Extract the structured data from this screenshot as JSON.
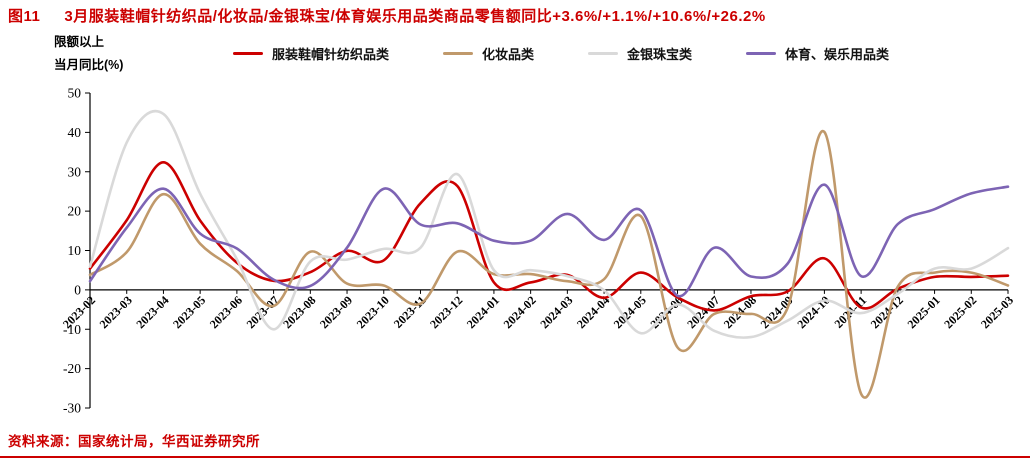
{
  "header": {
    "figure_label": "图11",
    "title": "3月服装鞋帽针纺织品/化妆品/金银珠宝/体育娱乐用品类商品零售额同比+3.6%/+1.1%/+10.6%/+26.2%",
    "accent_color": "#CC0000"
  },
  "footer": {
    "source": "资料来源：国家统计局，华西证券研究所"
  },
  "chart_data": {
    "type": "line",
    "smooth": true,
    "title": "3月服装鞋帽针纺织品/化妆品/金银珠宝/体育娱乐用品类商品零售额同比+3.6%/+1.1%/+10.6%/+26.2%",
    "ylabel_line1": "限额以上",
    "ylabel_line2": "当月同比(%)",
    "xlabel": "",
    "ylim": [
      -30,
      50
    ],
    "y_ticks": [
      50,
      40,
      30,
      20,
      10,
      0,
      -10,
      -20,
      -30
    ],
    "grid": false,
    "legend_position": "top",
    "categories": [
      "2023-02",
      "2023-03",
      "2023-04",
      "2023-05",
      "2023-06",
      "2023-07",
      "2023-08",
      "2023-09",
      "2023-10",
      "2023-11",
      "2023-12",
      "2024-01",
      "2024-02",
      "2024-03",
      "2024-04",
      "2024-05",
      "2024-06",
      "2024-07",
      "2024-08",
      "2024-09",
      "2024-10",
      "2024-11",
      "2024-12",
      "2025-01",
      "2025-02",
      "2025-03"
    ],
    "series": [
      {
        "id": "clothing",
        "name": "服装鞋帽针纺织品类",
        "color": "#CC0000",
        "values": [
          5.4,
          17.7,
          32.4,
          17.6,
          6.9,
          2.3,
          4.5,
          9.9,
          7.5,
          22.0,
          26.4,
          1.9,
          1.9,
          3.8,
          -2.0,
          4.4,
          -1.9,
          -5.2,
          -1.6,
          -0.4,
          8.0,
          -4.5,
          0.3,
          3.3,
          3.3,
          3.6
        ]
      },
      {
        "id": "cosmetics",
        "name": "化妆品类",
        "color": "#C0996B",
        "values": [
          3.8,
          9.6,
          24.3,
          11.7,
          4.8,
          -4.1,
          9.7,
          1.6,
          1.1,
          -3.5,
          9.7,
          4.0,
          4.0,
          2.2,
          2.7,
          18.7,
          -14.6,
          -6.1,
          -6.1,
          -4.5,
          40.1,
          -26.4,
          0.8,
          4.4,
          4.4,
          1.1
        ]
      },
      {
        "id": "jewelry",
        "name": "金银珠宝类",
        "color": "#D9D9D9",
        "values": [
          5.9,
          37.4,
          44.7,
          24.4,
          7.8,
          -10.0,
          7.2,
          7.7,
          10.4,
          10.7,
          29.4,
          5.0,
          5.0,
          3.5,
          -0.1,
          -11.0,
          -3.7,
          -10.4,
          -12.0,
          -7.8,
          -2.7,
          -5.9,
          -1.0,
          5.4,
          5.4,
          10.6
        ]
      },
      {
        "id": "sports",
        "name": "体育、娱乐用品类",
        "color": "#7D64B4",
        "values": [
          2.2,
          15.8,
          25.7,
          14.3,
          10.5,
          2.6,
          1.0,
          10.7,
          25.7,
          16.6,
          16.9,
          12.5,
          12.5,
          19.3,
          12.7,
          20.2,
          -1.5,
          10.7,
          3.4,
          6.7,
          26.7,
          3.5,
          16.7,
          20.5,
          24.5,
          26.2
        ]
      }
    ]
  }
}
